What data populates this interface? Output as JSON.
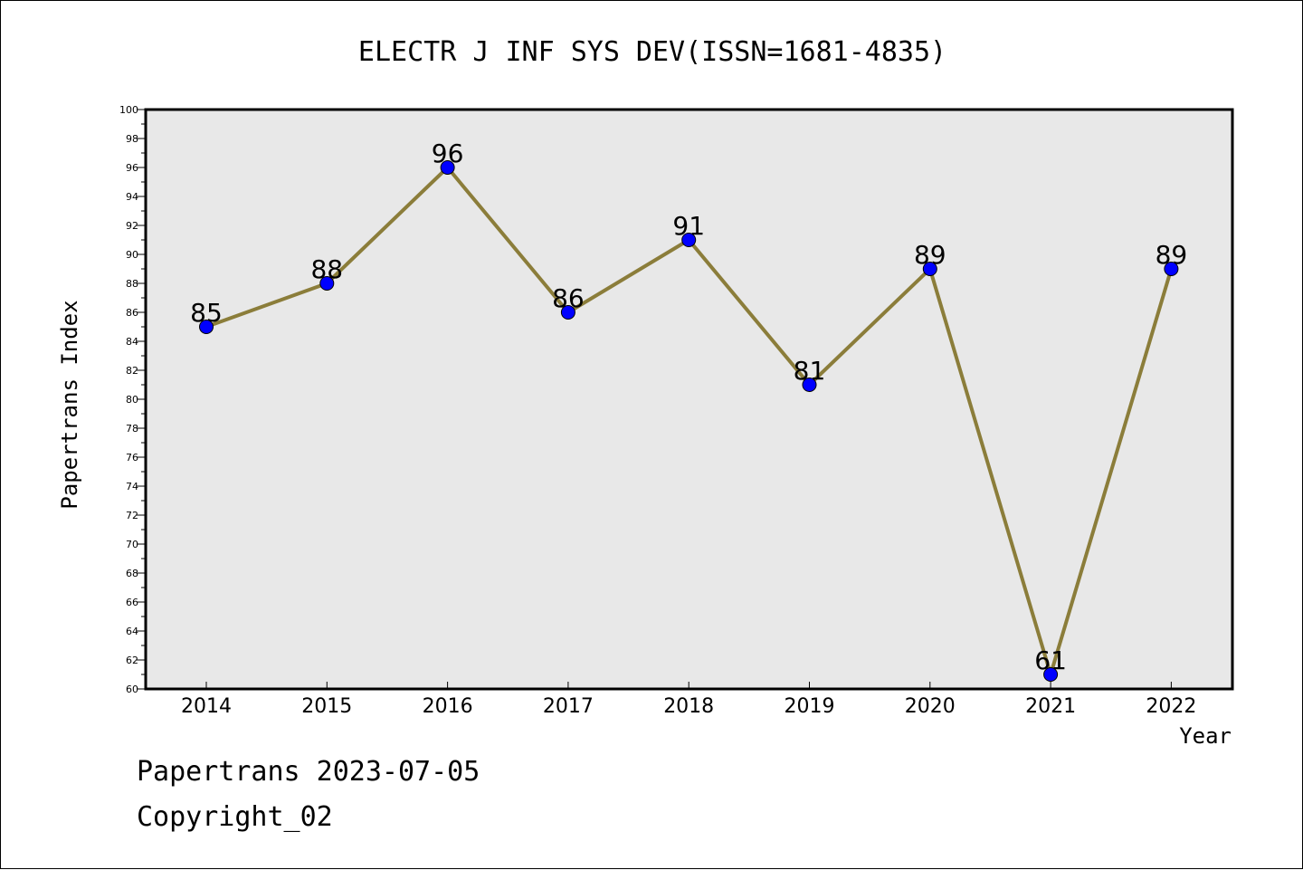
{
  "chart_data": {
    "type": "line",
    "title": "ELECTR J INF SYS DEV(ISSN=1681-4835)",
    "xlabel": "Year",
    "ylabel": "Papertrans Index",
    "categories": [
      "2014",
      "2015",
      "2016",
      "2017",
      "2018",
      "2019",
      "2020",
      "2021",
      "2022"
    ],
    "series": [
      {
        "values": [
          85,
          88,
          96,
          86,
          91,
          81,
          89,
          61,
          89
        ]
      }
    ],
    "ylim": [
      60,
      100
    ],
    "yticks": [
      60,
      62,
      64,
      66,
      68,
      70,
      72,
      74,
      76,
      78,
      80,
      82,
      84,
      86,
      88,
      90,
      92,
      94,
      96,
      98,
      100
    ],
    "grid": false,
    "data_labels": true,
    "colors": {
      "line": "#8b7d3a",
      "marker": "#0000ff",
      "plot_background": "#e8e8e8"
    }
  },
  "footer": {
    "line1": "Papertrans 2023-07-05",
    "line2": "Copyright_02"
  }
}
